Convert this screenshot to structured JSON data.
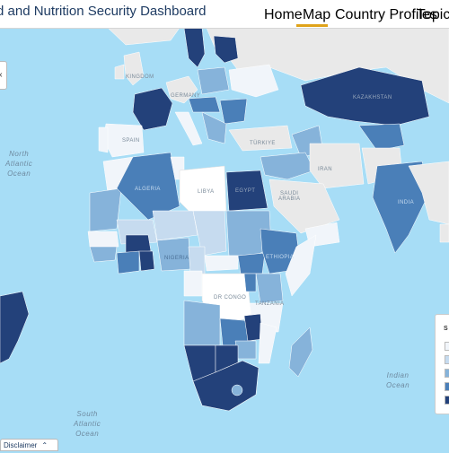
{
  "header": {
    "title": "d and Nutrition Security Dashboard",
    "nav": [
      {
        "label": "Home"
      },
      {
        "label": "Map"
      },
      {
        "label": "Country Profiles"
      },
      {
        "label": "Topics"
      }
    ],
    "active_nav": "Map",
    "topics_chevron": "chevron-down-icon"
  },
  "map": {
    "ocean_labels": {
      "north_atlantic": "North\nAtlantic\nOcean",
      "south_atlantic": "South\nAtlantic\nOcean",
      "indian": "Indian\nOcean"
    },
    "country_labels": {
      "spain": "SPAIN",
      "turkiye": "TÜRKIYE",
      "iran": "IRAN",
      "saudi": "SAUDI\nARABIA",
      "tanzania": "TANZANIA",
      "kingdom": "KINGDOM",
      "germany": "GERMANY",
      "kazakhstan": "KAZAKHSTAN",
      "india": "INDIA",
      "algeria": "ALGERIA",
      "libya": "LIBYA",
      "egypt": "EGYPT",
      "nigeria": "NIGERIA",
      "ethiopia": "ETHIOPIA",
      "dr_congo": "DR CONGO"
    },
    "colors": {
      "ocean": "#a7ddf6",
      "no_data": "#e9e9e9",
      "level1": "#f1f5fa",
      "level2": "#c6dbef",
      "level3": "#86b3da",
      "level4": "#4a7fb8",
      "level5": "#23417a"
    }
  },
  "legend": {
    "title": "S"
  },
  "footer": {
    "disclaimer_label": "Disclaimer",
    "disclaimer_icon": "chevron-up-icon"
  },
  "controls": {
    "collapse_icon": "chevron-left-icon",
    "collapse_glyph": "‹"
  }
}
